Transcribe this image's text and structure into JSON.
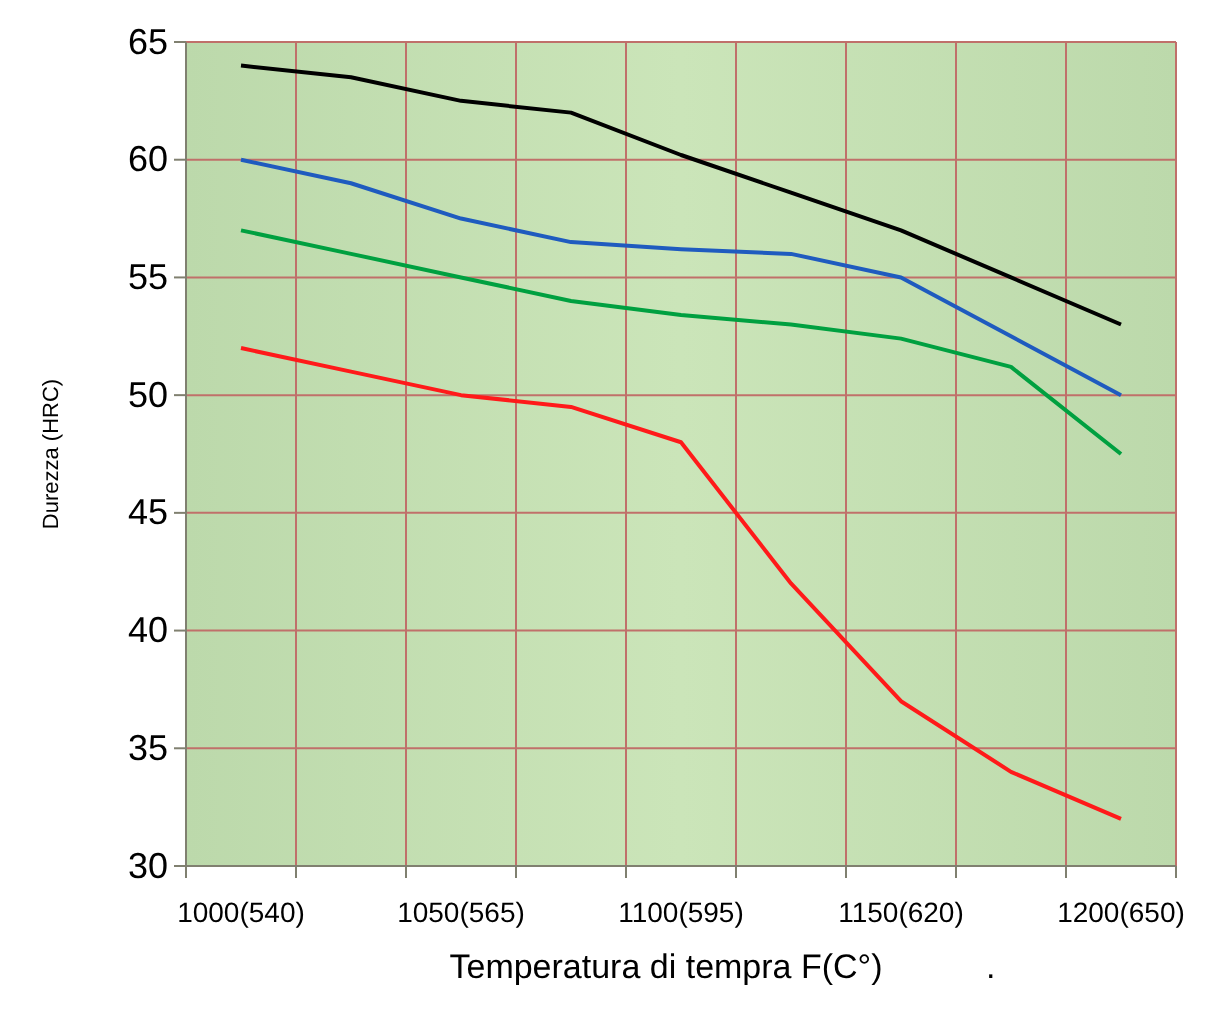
{
  "chart_data": {
    "type": "line",
    "xlabel": "Temperatura di tempra F(C°)",
    "ylabel": "Durezza (HRC)",
    "categories": [
      "1000(540)",
      null,
      "1050(565)",
      null,
      "1100(595)",
      null,
      "1150(620)",
      null,
      "1200(650)"
    ],
    "series": [
      {
        "color": "#000000",
        "values": [
          64,
          63.5,
          62.5,
          62,
          60.2,
          58.6,
          57,
          55,
          53
        ]
      },
      {
        "color": "#1f5bbf",
        "values": [
          60,
          59,
          57.5,
          56.5,
          56.2,
          56,
          55,
          52.5,
          50
        ]
      },
      {
        "color": "#00a040",
        "values": [
          57,
          56,
          55,
          54,
          53.4,
          53,
          52.4,
          51.2,
          47.5
        ]
      },
      {
        "color": "#ff1a1a",
        "values": [
          52,
          51,
          50,
          49.5,
          48,
          42,
          37,
          34,
          32
        ]
      }
    ],
    "ylim": [
      30,
      65
    ],
    "yticks": [
      30,
      35,
      40,
      45,
      50,
      55,
      60,
      65
    ],
    "grid": true,
    "marker": "none",
    "line_style": "solid",
    "annotations": [
      "."
    ]
  }
}
